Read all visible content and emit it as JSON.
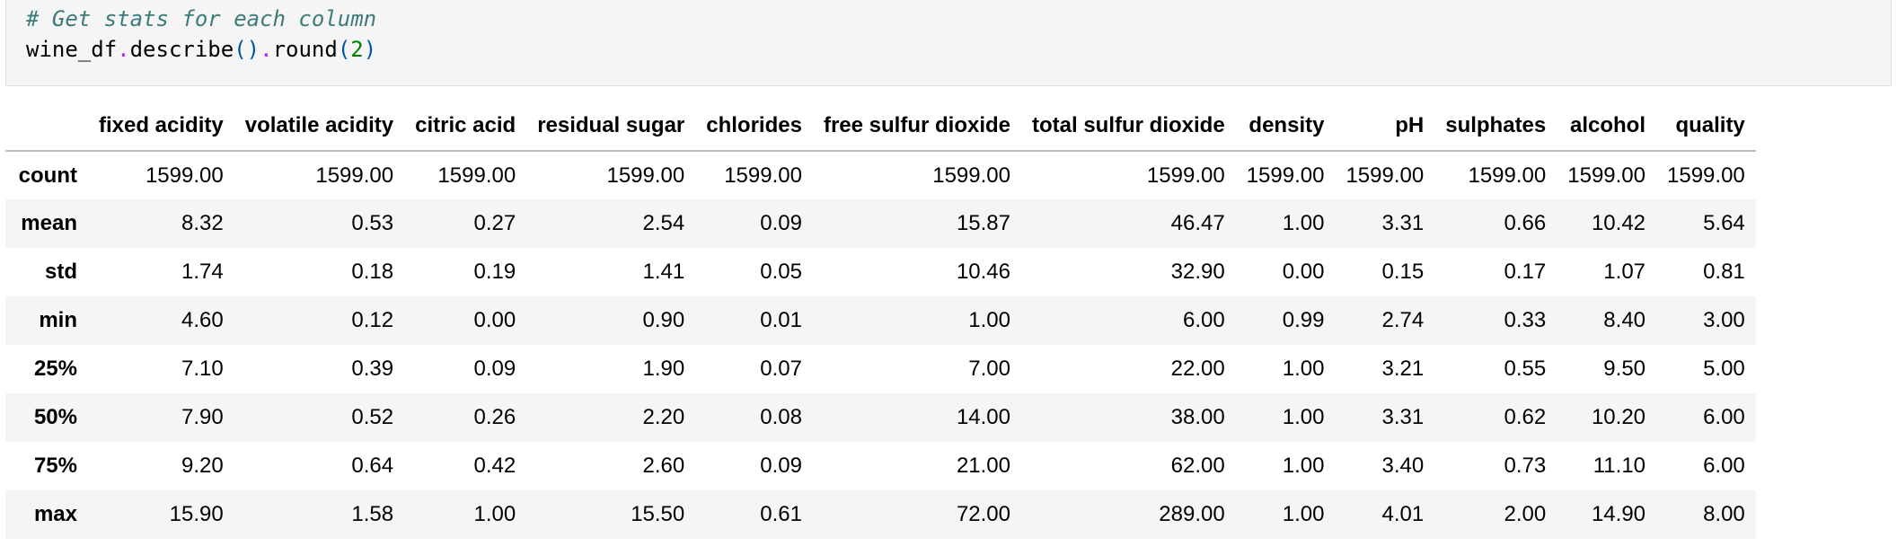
{
  "code_cell": {
    "comment": "# Get stats for each column",
    "code": {
      "var": "wine_df",
      "dot1": ".",
      "method1": "describe",
      "parens1": "()",
      "dot2": ".",
      "method2": "round",
      "open_paren": "(",
      "arg": "2",
      "close_paren": ")"
    }
  },
  "table": {
    "index_header": "",
    "columns": [
      "fixed acidity",
      "volatile acidity",
      "citric acid",
      "residual sugar",
      "chlorides",
      "free sulfur dioxide",
      "total sulfur dioxide",
      "density",
      "pH",
      "sulphates",
      "alcohol",
      "quality"
    ],
    "rows": [
      {
        "label": "count",
        "values": [
          "1599.00",
          "1599.00",
          "1599.00",
          "1599.00",
          "1599.00",
          "1599.00",
          "1599.00",
          "1599.00",
          "1599.00",
          "1599.00",
          "1599.00",
          "1599.00"
        ]
      },
      {
        "label": "mean",
        "values": [
          "8.32",
          "0.53",
          "0.27",
          "2.54",
          "0.09",
          "15.87",
          "46.47",
          "1.00",
          "3.31",
          "0.66",
          "10.42",
          "5.64"
        ]
      },
      {
        "label": "std",
        "values": [
          "1.74",
          "0.18",
          "0.19",
          "1.41",
          "0.05",
          "10.46",
          "32.90",
          "0.00",
          "0.15",
          "0.17",
          "1.07",
          "0.81"
        ]
      },
      {
        "label": "min",
        "values": [
          "4.60",
          "0.12",
          "0.00",
          "0.90",
          "0.01",
          "1.00",
          "6.00",
          "0.99",
          "2.74",
          "0.33",
          "8.40",
          "3.00"
        ]
      },
      {
        "label": "25%",
        "values": [
          "7.10",
          "0.39",
          "0.09",
          "1.90",
          "0.07",
          "7.00",
          "22.00",
          "1.00",
          "3.21",
          "0.55",
          "9.50",
          "5.00"
        ]
      },
      {
        "label": "50%",
        "values": [
          "7.90",
          "0.52",
          "0.26",
          "2.20",
          "0.08",
          "14.00",
          "38.00",
          "1.00",
          "3.31",
          "0.62",
          "10.20",
          "6.00"
        ]
      },
      {
        "label": "75%",
        "values": [
          "9.20",
          "0.64",
          "0.42",
          "2.60",
          "0.09",
          "21.00",
          "62.00",
          "1.00",
          "3.40",
          "0.73",
          "11.10",
          "6.00"
        ]
      },
      {
        "label": "max",
        "values": [
          "15.90",
          "1.58",
          "1.00",
          "15.50",
          "0.61",
          "72.00",
          "289.00",
          "1.00",
          "4.01",
          "2.00",
          "14.90",
          "8.00"
        ]
      }
    ]
  }
}
